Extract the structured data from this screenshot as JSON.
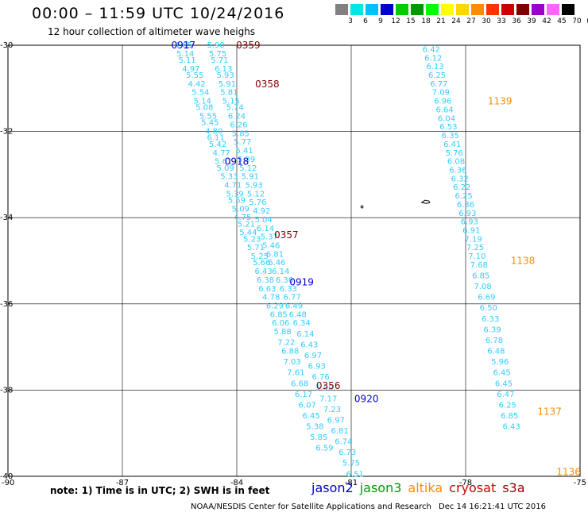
{
  "header": {
    "title": "00:00 – 11:59 UTC 10/24/2016",
    "subtitle": "12 hour collection of altimeter wave heighs"
  },
  "colorbar": {
    "colors": [
      "#808080",
      "#00e6e6",
      "#00bfff",
      "#0000cd",
      "#00cd00",
      "#009900",
      "#00ff00",
      "#ffff00",
      "#ffd700",
      "#ff8c00",
      "#ff3300",
      "#cc0000",
      "#800000",
      "#9900cc",
      "#ff66ff",
      "#000000"
    ],
    "labels": [
      "3",
      "6",
      "9",
      "12",
      "15",
      "18",
      "21",
      "24",
      "27",
      "30",
      "33",
      "36",
      "39",
      "42",
      "45",
      "70",
      "(ft)"
    ]
  },
  "axes": {
    "y_labels": [
      "-30",
      "-32",
      "-34",
      "-36",
      "-38",
      "-40"
    ],
    "x_labels": [
      "-90",
      "-87",
      "-84",
      "-81",
      "-78",
      "-75"
    ],
    "xlim": [
      -90,
      -75
    ],
    "ylim": [
      -40,
      -30
    ]
  },
  "note": "note: 1) Time is in UTC; 2) SWH is in feet",
  "legend": [
    {
      "name": "jason2",
      "color": "#0000cc"
    },
    {
      "name": "jason3",
      "color": "#009900"
    },
    {
      "name": "altika",
      "color": "#ff8c00"
    },
    {
      "name": "cryosat",
      "color": "#cc0000"
    },
    {
      "name": "s3a",
      "color": "#990000"
    }
  ],
  "footer": {
    "credit": "NOAA/NESDIS Center for Satellite Applications and Research",
    "date": "Dec 14 16:21:41 UTC 2016"
  },
  "time_labels": [
    {
      "text": "0917",
      "color": "#0000cc",
      "lon": -85.4,
      "lat": -30.0
    },
    {
      "text": "0918",
      "color": "#0000cc",
      "lon": -84.0,
      "lat": -32.7
    },
    {
      "text": "0919",
      "color": "#0000cc",
      "lon": -82.3,
      "lat": -35.5
    },
    {
      "text": "0920",
      "color": "#0000cc",
      "lon": -80.6,
      "lat": -38.2
    },
    {
      "text": "0359",
      "color": "#800000",
      "lon": -83.7,
      "lat": -30.0
    },
    {
      "text": "0358",
      "color": "#800000",
      "lon": -83.2,
      "lat": -30.9
    },
    {
      "text": "0357",
      "color": "#800000",
      "lon": -82.7,
      "lat": -34.4
    },
    {
      "text": "0356",
      "color": "#800000",
      "lon": -81.6,
      "lat": -37.9
    },
    {
      "text": "1139",
      "color": "#ff8c00",
      "lon": -77.1,
      "lat": -31.3
    },
    {
      "text": "1138",
      "color": "#ff8c00",
      "lon": -76.5,
      "lat": -35.0
    },
    {
      "text": "1137",
      "color": "#ff8c00",
      "lon": -75.8,
      "lat": -38.5
    },
    {
      "text": "1136",
      "color": "#ff8c00",
      "lon": -75.3,
      "lat": -39.9
    }
  ],
  "chart_data": {
    "type": "scatter",
    "title": "00:00 – 11:59 UTC 10/24/2016",
    "subtitle": "12 hour collection of altimeter wave heighs",
    "units": "ft",
    "series": [
      {
        "name": "jason2",
        "color": "#33ccff",
        "points": [
          {
            "lon": -85.4,
            "lat": -30.0,
            "swh": "4.65"
          },
          {
            "lon": -85.35,
            "lat": -30.2,
            "swh": "5.14"
          },
          {
            "lon": -85.3,
            "lat": -30.35,
            "swh": "5.11"
          },
          {
            "lon": -85.2,
            "lat": -30.55,
            "swh": "4.97"
          },
          {
            "lon": -85.1,
            "lat": -30.7,
            "swh": "5.55"
          },
          {
            "lon": -85.05,
            "lat": -30.9,
            "swh": "4.42"
          },
          {
            "lon": -84.95,
            "lat": -31.1,
            "swh": "5.54"
          },
          {
            "lon": -84.9,
            "lat": -31.3,
            "swh": "5.14"
          },
          {
            "lon": -84.85,
            "lat": -31.45,
            "swh": "5.08"
          },
          {
            "lon": -84.75,
            "lat": -31.65,
            "swh": "5.55"
          },
          {
            "lon": -84.7,
            "lat": -31.8,
            "swh": "5.45"
          },
          {
            "lon": -84.6,
            "lat": -32.0,
            "swh": "4.80"
          },
          {
            "lon": -84.55,
            "lat": -32.15,
            "swh": "6.11"
          },
          {
            "lon": -84.5,
            "lat": -32.3,
            "swh": "5.42"
          },
          {
            "lon": -84.4,
            "lat": -32.5,
            "swh": "4.77"
          },
          {
            "lon": -84.35,
            "lat": -32.7,
            "swh": "5.61"
          },
          {
            "lon": -84.3,
            "lat": -32.85,
            "swh": "5.09"
          },
          {
            "lon": -84.2,
            "lat": -33.05,
            "swh": "5.33"
          },
          {
            "lon": -84.1,
            "lat": -33.25,
            "swh": "4.71"
          },
          {
            "lon": -84.05,
            "lat": -33.45,
            "swh": "5.39"
          },
          {
            "lon": -84.0,
            "lat": -33.6,
            "swh": "5.59"
          },
          {
            "lon": -83.9,
            "lat": -33.8,
            "swh": "5.09"
          },
          {
            "lon": -83.85,
            "lat": -34.0,
            "swh": "4.75"
          },
          {
            "lon": -83.75,
            "lat": -34.15,
            "swh": "5.21"
          },
          {
            "lon": -83.7,
            "lat": -34.35,
            "swh": "5.44"
          },
          {
            "lon": -83.6,
            "lat": -34.5,
            "swh": "5.23"
          },
          {
            "lon": -83.5,
            "lat": -34.7,
            "swh": "5.71"
          },
          {
            "lon": -83.4,
            "lat": -34.9,
            "swh": "5.25"
          },
          {
            "lon": -83.35,
            "lat": -35.05,
            "swh": "5.66"
          },
          {
            "lon": -83.3,
            "lat": -35.25,
            "swh": "6.43"
          },
          {
            "lon": -83.25,
            "lat": -35.45,
            "swh": "6.38"
          },
          {
            "lon": -83.2,
            "lat": -35.65,
            "swh": "6.63"
          },
          {
            "lon": -83.1,
            "lat": -35.85,
            "swh": "4.78"
          },
          {
            "lon": -83.0,
            "lat": -36.05,
            "swh": "6.29"
          },
          {
            "lon": -82.9,
            "lat": -36.25,
            "swh": "6.85"
          },
          {
            "lon": -82.85,
            "lat": -36.45,
            "swh": "6.06"
          },
          {
            "lon": -82.8,
            "lat": -36.65,
            "swh": "5.88"
          },
          {
            "lon": -82.7,
            "lat": -36.9,
            "swh": "7.22"
          },
          {
            "lon": -82.6,
            "lat": -37.1,
            "swh": "6.88"
          },
          {
            "lon": -82.55,
            "lat": -37.35,
            "swh": "7.03"
          },
          {
            "lon": -82.45,
            "lat": -37.6,
            "swh": "7.61"
          },
          {
            "lon": -82.35,
            "lat": -37.85,
            "swh": "6.68"
          },
          {
            "lon": -82.25,
            "lat": -38.1,
            "swh": "6.17"
          },
          {
            "lon": -82.15,
            "lat": -38.35,
            "swh": "6.07"
          },
          {
            "lon": -82.05,
            "lat": -38.6,
            "swh": "6.45"
          },
          {
            "lon": -81.95,
            "lat": -38.85,
            "swh": "5.38"
          },
          {
            "lon": -81.85,
            "lat": -39.1,
            "swh": "5.85"
          },
          {
            "lon": -81.7,
            "lat": -39.35,
            "swh": "6.59"
          }
        ]
      },
      {
        "name": "s3a",
        "color": "#33ccff",
        "points": [
          {
            "lon": -84.55,
            "lat": -30.0,
            "swh": "5.90"
          },
          {
            "lon": -84.5,
            "lat": -30.2,
            "swh": "5.75"
          },
          {
            "lon": -84.45,
            "lat": -30.35,
            "swh": "5.71"
          },
          {
            "lon": -84.35,
            "lat": -30.55,
            "swh": "6.13"
          },
          {
            "lon": -84.3,
            "lat": -30.7,
            "swh": "5.93"
          },
          {
            "lon": -84.25,
            "lat": -30.9,
            "swh": "5.91"
          },
          {
            "lon": -84.2,
            "lat": -31.1,
            "swh": "5.81"
          },
          {
            "lon": -84.15,
            "lat": -31.3,
            "swh": "5.15"
          },
          {
            "lon": -84.05,
            "lat": -31.45,
            "swh": "5.74"
          },
          {
            "lon": -84.0,
            "lat": -31.65,
            "swh": "6.24"
          },
          {
            "lon": -83.95,
            "lat": -31.85,
            "swh": "6.26"
          },
          {
            "lon": -83.9,
            "lat": -32.05,
            "swh": "5.85"
          },
          {
            "lon": -83.85,
            "lat": -32.25,
            "swh": "5.77"
          },
          {
            "lon": -83.8,
            "lat": -32.45,
            "swh": "5.41"
          },
          {
            "lon": -83.75,
            "lat": -32.65,
            "swh": "5.39"
          },
          {
            "lon": -83.7,
            "lat": -32.85,
            "swh": "5.12"
          },
          {
            "lon": -83.65,
            "lat": -33.05,
            "swh": "5.91"
          },
          {
            "lon": -83.55,
            "lat": -33.25,
            "swh": "5.93"
          },
          {
            "lon": -83.5,
            "lat": -33.45,
            "swh": "5.12"
          },
          {
            "lon": -83.45,
            "lat": -33.65,
            "swh": "5.76"
          },
          {
            "lon": -83.35,
            "lat": -33.85,
            "swh": "4.92"
          },
          {
            "lon": -83.3,
            "lat": -34.05,
            "swh": "5.04"
          },
          {
            "lon": -83.25,
            "lat": -34.25,
            "swh": "6.14"
          },
          {
            "lon": -83.15,
            "lat": -34.45,
            "swh": "5.37"
          },
          {
            "lon": -83.1,
            "lat": -34.65,
            "swh": "5.46"
          },
          {
            "lon": -83.0,
            "lat": -34.85,
            "swh": "6.81"
          },
          {
            "lon": -82.95,
            "lat": -35.05,
            "swh": "6.46"
          },
          {
            "lon": -82.85,
            "lat": -35.25,
            "swh": "6.14"
          },
          {
            "lon": -82.75,
            "lat": -35.45,
            "swh": "6.36"
          },
          {
            "lon": -82.65,
            "lat": -35.65,
            "swh": "6.33"
          },
          {
            "lon": -82.55,
            "lat": -35.85,
            "swh": "6.77"
          },
          {
            "lon": -82.5,
            "lat": -36.05,
            "swh": "6.49"
          },
          {
            "lon": -82.4,
            "lat": -36.25,
            "swh": "6.48"
          },
          {
            "lon": -82.3,
            "lat": -36.45,
            "swh": "6.34"
          },
          {
            "lon": -82.2,
            "lat": -36.7,
            "swh": "6.14"
          },
          {
            "lon": -82.1,
            "lat": -36.95,
            "swh": "6.43"
          },
          {
            "lon": -82.0,
            "lat": -37.2,
            "swh": "6.97"
          },
          {
            "lon": -81.9,
            "lat": -37.45,
            "swh": "6.93"
          },
          {
            "lon": -81.8,
            "lat": -37.7,
            "swh": "6.76"
          },
          {
            "lon": -81.7,
            "lat": -37.95,
            "swh": "5.90"
          },
          {
            "lon": -81.6,
            "lat": -38.2,
            "swh": "7.17"
          },
          {
            "lon": -81.5,
            "lat": -38.45,
            "swh": "7.23"
          },
          {
            "lon": -81.4,
            "lat": -38.7,
            "swh": "6.97"
          },
          {
            "lon": -81.3,
            "lat": -38.95,
            "swh": "6.81"
          },
          {
            "lon": -81.2,
            "lat": -39.2,
            "swh": "6.74"
          },
          {
            "lon": -81.1,
            "lat": -39.45,
            "swh": "6.73"
          },
          {
            "lon": -81.0,
            "lat": -39.7,
            "swh": "5.75"
          },
          {
            "lon": -80.9,
            "lat": -39.95,
            "swh": "6.51"
          }
        ]
      },
      {
        "name": "altika",
        "color": "#33ccff",
        "points": [
          {
            "lon": -78.9,
            "lat": -30.1,
            "swh": "6.42"
          },
          {
            "lon": -78.85,
            "lat": -30.3,
            "swh": "6.12"
          },
          {
            "lon": -78.8,
            "lat": -30.5,
            "swh": "6.13"
          },
          {
            "lon": -78.75,
            "lat": -30.7,
            "swh": "6.25"
          },
          {
            "lon": -78.7,
            "lat": -30.9,
            "swh": "6.77"
          },
          {
            "lon": -78.65,
            "lat": -31.1,
            "swh": "7.09"
          },
          {
            "lon": -78.6,
            "lat": -31.3,
            "swh": "6.96"
          },
          {
            "lon": -78.55,
            "lat": -31.5,
            "swh": "6.64"
          },
          {
            "lon": -78.5,
            "lat": -31.7,
            "swh": "6.04"
          },
          {
            "lon": -78.45,
            "lat": -31.9,
            "swh": "6.53"
          },
          {
            "lon": -78.4,
            "lat": -32.1,
            "swh": "6.35"
          },
          {
            "lon": -78.35,
            "lat": -32.3,
            "swh": "6.41"
          },
          {
            "lon": -78.3,
            "lat": -32.5,
            "swh": "5.76"
          },
          {
            "lon": -78.25,
            "lat": -32.7,
            "swh": "6.08"
          },
          {
            "lon": -78.2,
            "lat": -32.9,
            "swh": "6.36"
          },
          {
            "lon": -78.15,
            "lat": -33.1,
            "swh": "6.32"
          },
          {
            "lon": -78.1,
            "lat": -33.3,
            "swh": "6.22"
          },
          {
            "lon": -78.05,
            "lat": -33.5,
            "swh": "6.25"
          },
          {
            "lon": -78.0,
            "lat": -33.7,
            "swh": "6.36"
          },
          {
            "lon": -77.95,
            "lat": -33.9,
            "swh": "6.93"
          },
          {
            "lon": -77.9,
            "lat": -34.1,
            "swh": "6.93"
          },
          {
            "lon": -77.85,
            "lat": -34.3,
            "swh": "6.91"
          },
          {
            "lon": -77.8,
            "lat": -34.5,
            "swh": "7.19"
          },
          {
            "lon": -77.75,
            "lat": -34.7,
            "swh": "7.25"
          },
          {
            "lon": -77.7,
            "lat": -34.9,
            "swh": "7.10"
          },
          {
            "lon": -77.65,
            "lat": -35.1,
            "swh": "7.68"
          },
          {
            "lon": -77.6,
            "lat": -35.35,
            "swh": "6.85"
          },
          {
            "lon": -77.55,
            "lat": -35.6,
            "swh": "7.08"
          },
          {
            "lon": -77.45,
            "lat": -35.85,
            "swh": "6.69"
          },
          {
            "lon": -77.4,
            "lat": -36.1,
            "swh": "6.50"
          },
          {
            "lon": -77.35,
            "lat": -36.35,
            "swh": "6.33"
          },
          {
            "lon": -77.3,
            "lat": -36.6,
            "swh": "6.39"
          },
          {
            "lon": -77.25,
            "lat": -36.85,
            "swh": "6.78"
          },
          {
            "lon": -77.2,
            "lat": -37.1,
            "swh": "6.48"
          },
          {
            "lon": -77.1,
            "lat": -37.35,
            "swh": "5.96"
          },
          {
            "lon": -77.05,
            "lat": -37.6,
            "swh": "6.45"
          },
          {
            "lon": -77.0,
            "lat": -37.85,
            "swh": "6.45"
          },
          {
            "lon": -76.95,
            "lat": -38.1,
            "swh": "6.47"
          },
          {
            "lon": -76.9,
            "lat": -38.35,
            "swh": "6.25"
          },
          {
            "lon": -76.85,
            "lat": -38.6,
            "swh": "6.85"
          },
          {
            "lon": -76.8,
            "lat": -38.85,
            "swh": "6.43"
          }
        ]
      }
    ]
  }
}
